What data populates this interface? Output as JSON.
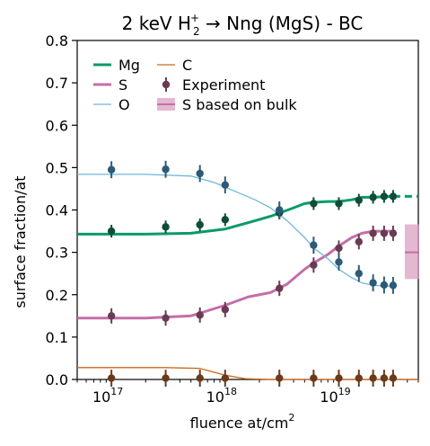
{
  "chart_data": {
    "type": "line",
    "title": "2 keV H",
    "title_sub": "2",
    "title_sup": "+",
    "title_rest": " → Nng (MgS) - BC",
    "xlabel": "fluence at/cm",
    "xlabel_sup": "2",
    "ylabel": "surface fraction/at",
    "xscale": "log",
    "xlim": [
      5e+16,
      5e+19
    ],
    "ylim": [
      0.0,
      0.8
    ],
    "yticks": [
      {
        "v": 0.0,
        "label": "0.0"
      },
      {
        "v": 0.1,
        "label": "0.1"
      },
      {
        "v": 0.2,
        "label": "0.2"
      },
      {
        "v": 0.3,
        "label": "0.3"
      },
      {
        "v": 0.4,
        "label": "0.4"
      },
      {
        "v": 0.5,
        "label": "0.5"
      },
      {
        "v": 0.6,
        "label": "0.6"
      },
      {
        "v": 0.7,
        "label": "0.7"
      },
      {
        "v": 0.8,
        "label": "0.8"
      }
    ],
    "xticks": [
      {
        "v": 1e+17,
        "base": "10",
        "exp": "17"
      },
      {
        "v": 1e+18,
        "base": "10",
        "exp": "18"
      },
      {
        "v": 1e+19,
        "base": "10",
        "exp": "19"
      }
    ],
    "colors": {
      "Mg": "#0a9a6a",
      "S": "#c46fa8",
      "O": "#6fb8d8",
      "C": "#cc6a1a",
      "Mg_pts": "#0d4d3a",
      "S_pts": "#6a3a55",
      "O_pts": "#2c5a78",
      "C_pts": "#6a3a1a",
      "bulk": "#d9a0c0"
    },
    "legend": [
      {
        "key": "Mg",
        "label": "Mg",
        "style": "line"
      },
      {
        "key": "S",
        "label": "S",
        "style": "line"
      },
      {
        "key": "O",
        "label": "O",
        "style": "line"
      },
      {
        "key": "C",
        "label": "C",
        "style": "line"
      },
      {
        "key": "exp",
        "label": "Experiment",
        "style": "marker"
      },
      {
        "key": "bulk",
        "label": "S based on bulk",
        "style": "band"
      }
    ],
    "series_lines": [
      {
        "name": "Mg",
        "width": 3,
        "x": [
          5e+16,
          2e+17,
          5e+17,
          1e+18,
          1.6e+18,
          2.5e+18,
          4e+18,
          5e+18,
          6e+18,
          8e+18,
          1e+19,
          1.3e+19,
          1.6e+19,
          2e+19,
          3e+19
        ],
        "y": [
          0.343,
          0.343,
          0.345,
          0.355,
          0.37,
          0.385,
          0.405,
          0.415,
          0.418,
          0.42,
          0.42,
          0.424,
          0.43,
          0.43,
          0.432
        ]
      },
      {
        "name": "S",
        "width": 3,
        "x": [
          5e+16,
          2e+17,
          5e+17,
          1e+18,
          1.6e+18,
          2.5e+18,
          3.5e+18,
          5e+18,
          6e+18,
          8e+18,
          1e+19,
          1.3e+19,
          1.6e+19,
          2e+19,
          3e+19
        ],
        "y": [
          0.145,
          0.145,
          0.15,
          0.175,
          0.195,
          0.205,
          0.225,
          0.26,
          0.275,
          0.295,
          0.315,
          0.335,
          0.345,
          0.35,
          0.35
        ]
      },
      {
        "name": "O",
        "width": 1.3,
        "x": [
          5e+16,
          2e+17,
          5e+17,
          8e+17,
          1.2e+18,
          1.8e+18,
          2.5e+18,
          3.5e+18,
          5e+18,
          6e+18,
          8e+18,
          1e+19,
          1.3e+19,
          1.6e+19,
          2e+19,
          3e+19
        ],
        "y": [
          0.484,
          0.484,
          0.48,
          0.465,
          0.445,
          0.425,
          0.405,
          0.375,
          0.335,
          0.31,
          0.285,
          0.26,
          0.24,
          0.228,
          0.222,
          0.22
        ]
      },
      {
        "name": "C",
        "width": 1.3,
        "x": [
          5e+16,
          3e+17,
          6e+17,
          1e+18,
          1.5e+18,
          2.5e+18,
          4e+18,
          5e+19
        ],
        "y": [
          0.028,
          0.028,
          0.026,
          0.01,
          0.002,
          0.0,
          0.0,
          0.0
        ]
      }
    ],
    "extension": {
      "name": "Mg",
      "x": [
        3e+19,
        5e+19
      ],
      "y": [
        0.432,
        0.432
      ]
    },
    "bulk_band": {
      "x": 4.4e+19,
      "y": 0.3,
      "ylow": 0.237,
      "yhigh": 0.366
    },
    "experiment_x": [
      1e+17,
      3e+17,
      6e+17,
      1e+18,
      3e+18,
      6e+18,
      1e+19,
      1.5e+19,
      2e+19,
      2.5e+19,
      3e+19
    ],
    "experiment": [
      {
        "name": "Mg",
        "y": [
          0.35,
          0.36,
          0.365,
          0.377,
          0.393,
          0.415,
          0.415,
          0.423,
          0.43,
          0.432,
          0.432
        ],
        "err": 0.015
      },
      {
        "name": "S",
        "y": [
          0.15,
          0.145,
          0.152,
          0.165,
          0.215,
          0.27,
          0.31,
          0.325,
          0.345,
          0.345,
          0.345
        ],
        "err": 0.018
      },
      {
        "name": "O",
        "y": [
          0.495,
          0.496,
          0.486,
          0.459,
          0.4,
          0.317,
          0.277,
          0.25,
          0.228,
          0.223,
          0.222
        ],
        "err": 0.02
      },
      {
        "name": "C",
        "y": [
          0.003,
          0.003,
          0.003,
          0.003,
          0.003,
          0.003,
          0.003,
          0.003,
          0.003,
          0.003,
          0.003
        ],
        "err": 0.02
      }
    ]
  }
}
